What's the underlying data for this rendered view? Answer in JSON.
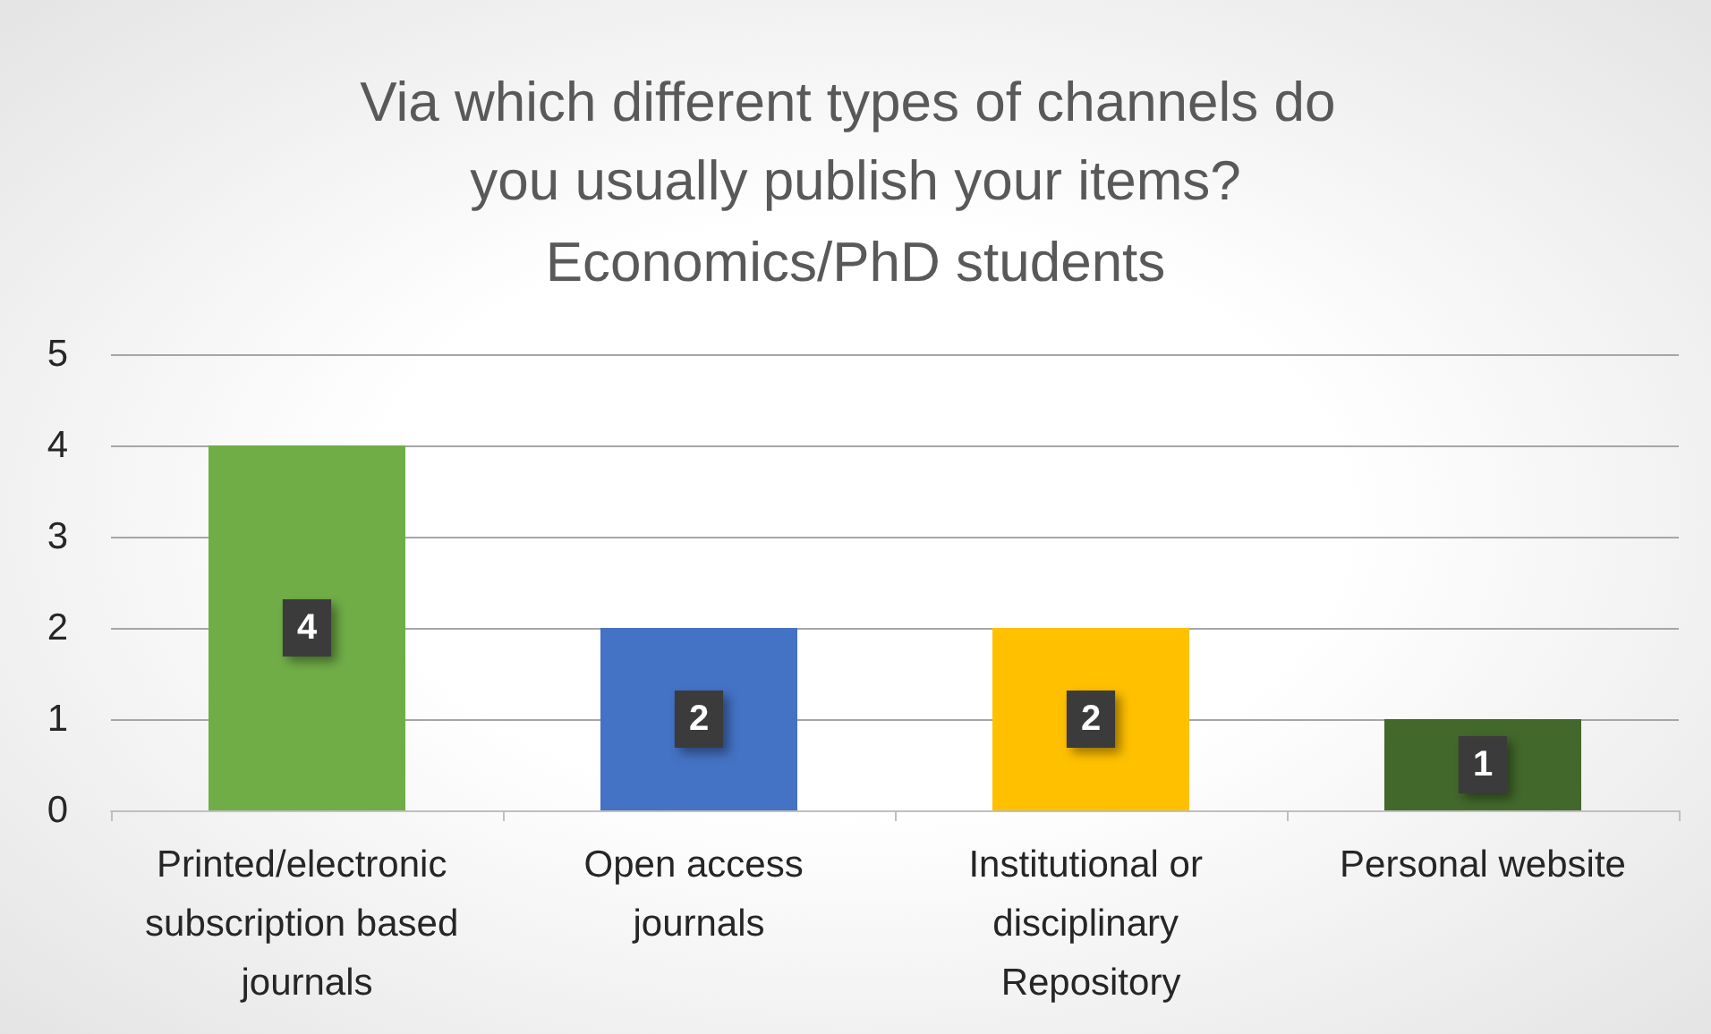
{
  "chart_data": {
    "type": "bar",
    "title": "Via which different types of channels do you usually publish your items?",
    "subtitle": "Economics/PhD students",
    "categories": [
      "Printed/electronic subscription based journals",
      "Open access journals",
      "Institutional or disciplinary Repository",
      "Personal website"
    ],
    "values": [
      4,
      2,
      2,
      1
    ],
    "colors": [
      "#70ad47",
      "#4472c4",
      "#ffc000",
      "#43682b"
    ],
    "ylim": [
      0,
      5
    ],
    "yticks": [
      0,
      1,
      2,
      3,
      4,
      5
    ],
    "grid": "y",
    "data_labels": true
  }
}
